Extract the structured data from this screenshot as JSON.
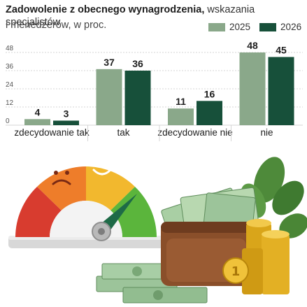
{
  "header": {
    "title_bold": "Zadowolenie z obecnego wynagrodzenia,",
    "title_rest": " wskazania specjalistów",
    "subtitle": "i menedżerów, w proc."
  },
  "colors": {
    "series_2025": "#8aa88a",
    "series_2026": "#17503a",
    "grid": "#d5d5d5",
    "tick": "#555555",
    "value_label": "#1e1e1e"
  },
  "chart_data": {
    "type": "bar",
    "title": "Zadowolenie z obecnego wynagrodzenia, wskazania specjalistów i menedżerów, w proc.",
    "xlabel": "",
    "ylabel": "",
    "ylim": [
      0,
      52
    ],
    "yticks": [
      0,
      12,
      24,
      36,
      48
    ],
    "grid": true,
    "legend_position": "top-right",
    "categories": [
      "zdecydowanie tak",
      "tak",
      "zdecydowanie nie",
      "nie"
    ],
    "series": [
      {
        "name": "2025",
        "values": [
          4,
          37,
          11,
          48
        ]
      },
      {
        "name": "2026",
        "values": [
          3,
          36,
          16,
          45
        ]
      }
    ]
  },
  "illustration": {
    "gauge_icon": "satisfaction-gauge-icon",
    "wallet_icon": "wallet-with-banknotes-icon",
    "coins_icon": "coin-stack-icon",
    "cash_icon": "banknote-stack-icon",
    "plant_icon": "leaf-plant-icon"
  }
}
